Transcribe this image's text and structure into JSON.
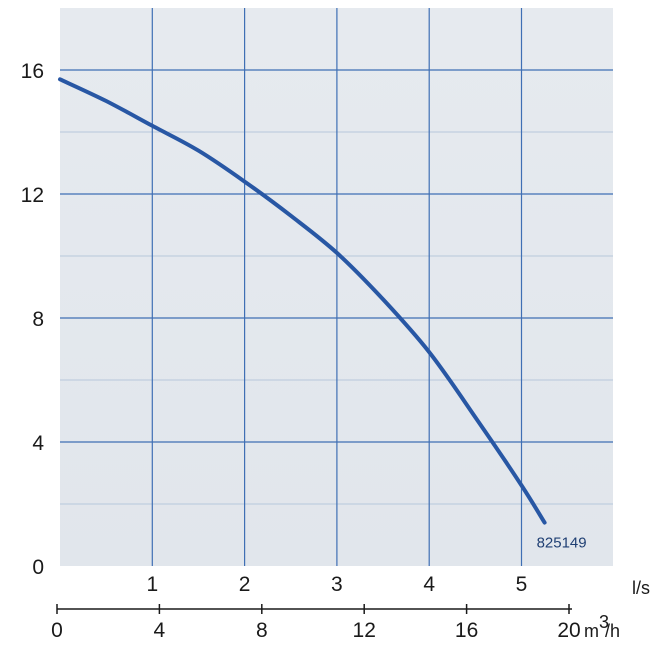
{
  "chart_data": {
    "type": "line",
    "colors": {
      "plot_background": "#e1e6ec",
      "major_grid": "#3f6fb4",
      "minor_grid": "#b7c7db",
      "curve": "#2857a4",
      "axis": "#1a1a1a"
    },
    "y_axis": {
      "range": [
        0,
        18
      ],
      "tick_values": [
        0,
        4,
        8,
        12,
        16
      ],
      "tick_labels": [
        "0",
        "4",
        "8",
        "12",
        "16"
      ],
      "minor_grid_values": [
        2,
        6,
        10,
        14
      ]
    },
    "x_axis_flow_ls": {
      "range": [
        0,
        6
      ],
      "unit": "l/s",
      "tick_values": [
        1,
        2,
        3,
        4,
        5
      ],
      "tick_labels": [
        "1",
        "2",
        "3",
        "4",
        "5"
      ]
    },
    "x_axis_flow_m3h": {
      "range": [
        0,
        20
      ],
      "unit_base": "m",
      "unit_sup": "3",
      "unit_rest": "/h",
      "tick_values": [
        0,
        4,
        8,
        12,
        16,
        20
      ],
      "tick_labels": [
        "0",
        "4",
        "8",
        "12",
        "16",
        "20"
      ]
    },
    "grid": true,
    "series": [
      {
        "name": "825149",
        "x": [
          0,
          0.5,
          1.0,
          1.5,
          2.0,
          2.5,
          3.0,
          3.5,
          4.0,
          4.5,
          5.0,
          5.25
        ],
        "y": [
          15.7,
          15.0,
          14.2,
          13.4,
          12.4,
          11.3,
          10.1,
          8.6,
          6.9,
          4.8,
          2.6,
          1.4
        ]
      }
    ]
  }
}
